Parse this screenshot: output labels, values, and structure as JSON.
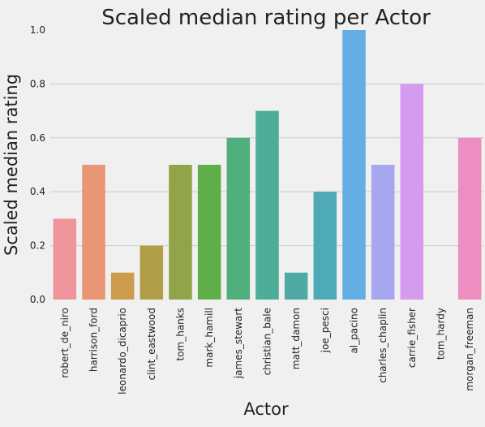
{
  "chart_data": {
    "type": "bar",
    "title": "Scaled median rating per Actor",
    "xlabel": "Actor",
    "ylabel": "Scaled median rating",
    "ylim": [
      0,
      1.0
    ],
    "yticks": [
      "0.0",
      "0.2",
      "0.4",
      "0.6",
      "0.8",
      "1.0"
    ],
    "grid": "horizontal",
    "categories": [
      "robert_de_niro",
      "harrison_ford",
      "leonardo_dicaprio",
      "clint_eastwood",
      "tom_hanks",
      "mark_hamill",
      "james_stewart",
      "christian_bale",
      "matt_damon",
      "joe_pesci",
      "al_pacino",
      "charles_chaplin",
      "carrie_fisher",
      "tom_hardy",
      "morgan_freeman"
    ],
    "values": [
      0.3,
      0.5,
      0.1,
      0.2,
      0.5,
      0.5,
      0.6,
      0.7,
      0.1,
      0.4,
      1.0,
      0.5,
      0.8,
      0.0,
      0.6
    ],
    "colors": [
      "#f0949b",
      "#e89674",
      "#cc9b4b",
      "#b19e48",
      "#92a448",
      "#5eaf48",
      "#4fb07d",
      "#4dad97",
      "#4faaa5",
      "#4faab8",
      "#64aee3",
      "#a7a7ef",
      "#d59bef",
      "#ef8cd8",
      "#ec8ec0"
    ]
  }
}
